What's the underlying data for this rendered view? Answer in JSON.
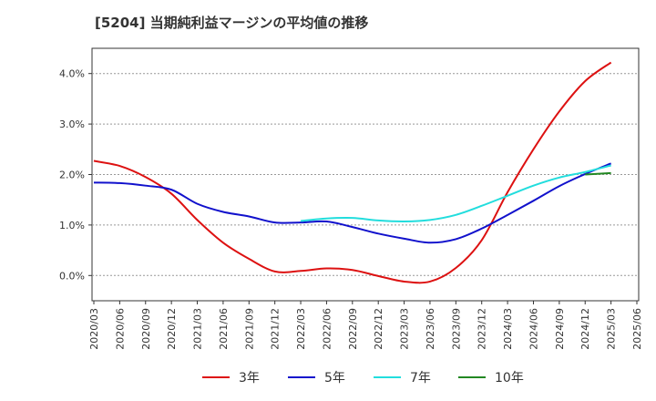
{
  "chart_data": {
    "type": "line",
    "title": "[5204]  当期純利益マージンの平均値の推移",
    "xlabel": "",
    "ylabel": "",
    "x": [
      "2020/03",
      "2020/06",
      "2020/09",
      "2020/12",
      "2021/03",
      "2021/06",
      "2021/09",
      "2021/12",
      "2022/03",
      "2022/06",
      "2022/09",
      "2022/12",
      "2023/03",
      "2023/06",
      "2023/09",
      "2023/12",
      "2024/03",
      "2024/06",
      "2024/09",
      "2024/12",
      "2025/03",
      "2025/06"
    ],
    "ylim": [
      -0.5,
      4.5
    ],
    "yticks": [
      0.0,
      1.0,
      2.0,
      3.0,
      4.0
    ],
    "ytick_labels": [
      "0.0%",
      "1.0%",
      "2.0%",
      "3.0%",
      "4.0%"
    ],
    "grid": "horizontal dashed",
    "legend_position": "bottom",
    "series": [
      {
        "name": "3年",
        "color": "#dd1111",
        "points": [
          [
            "2020/03",
            2.27
          ],
          [
            "2020/06",
            2.17
          ],
          [
            "2020/09",
            1.95
          ],
          [
            "2020/12",
            1.62
          ],
          [
            "2021/03",
            1.1
          ],
          [
            "2021/06",
            0.65
          ],
          [
            "2021/09",
            0.33
          ],
          [
            "2021/12",
            0.08
          ],
          [
            "2022/03",
            0.09
          ],
          [
            "2022/06",
            0.14
          ],
          [
            "2022/09",
            0.11
          ],
          [
            "2022/12",
            -0.01
          ],
          [
            "2023/03",
            -0.12
          ],
          [
            "2023/06",
            -0.12
          ],
          [
            "2023/09",
            0.15
          ],
          [
            "2023/12",
            0.7
          ],
          [
            "2024/03",
            1.65
          ],
          [
            "2024/06",
            2.5
          ],
          [
            "2024/09",
            3.25
          ],
          [
            "2024/12",
            3.85
          ],
          [
            "2025/03",
            4.22
          ]
        ]
      },
      {
        "name": "5年",
        "color": "#1111cc",
        "points": [
          [
            "2020/03",
            1.84
          ],
          [
            "2020/06",
            1.83
          ],
          [
            "2020/09",
            1.78
          ],
          [
            "2020/12",
            1.7
          ],
          [
            "2021/03",
            1.42
          ],
          [
            "2021/06",
            1.26
          ],
          [
            "2021/09",
            1.17
          ],
          [
            "2021/12",
            1.05
          ],
          [
            "2022/03",
            1.05
          ],
          [
            "2022/06",
            1.07
          ],
          [
            "2022/09",
            0.96
          ],
          [
            "2022/12",
            0.83
          ],
          [
            "2023/03",
            0.73
          ],
          [
            "2023/06",
            0.65
          ],
          [
            "2023/09",
            0.72
          ],
          [
            "2023/12",
            0.93
          ],
          [
            "2024/03",
            1.2
          ],
          [
            "2024/06",
            1.48
          ],
          [
            "2024/09",
            1.77
          ],
          [
            "2024/12",
            2.01
          ],
          [
            "2025/03",
            2.22
          ]
        ]
      },
      {
        "name": "7年",
        "color": "#22dddd",
        "points": [
          [
            "2022/03",
            1.08
          ],
          [
            "2022/06",
            1.13
          ],
          [
            "2022/09",
            1.14
          ],
          [
            "2022/12",
            1.09
          ],
          [
            "2023/03",
            1.07
          ],
          [
            "2023/06",
            1.1
          ],
          [
            "2023/09",
            1.2
          ],
          [
            "2023/12",
            1.38
          ],
          [
            "2024/03",
            1.58
          ],
          [
            "2024/06",
            1.78
          ],
          [
            "2024/09",
            1.94
          ],
          [
            "2024/12",
            2.05
          ],
          [
            "2025/03",
            2.18
          ]
        ]
      },
      {
        "name": "10年",
        "color": "#228822",
        "points": [
          [
            "2024/12",
            2.0
          ],
          [
            "2025/03",
            2.03
          ]
        ]
      }
    ]
  }
}
